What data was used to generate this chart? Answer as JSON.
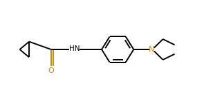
{
  "bg_color": "#ffffff",
  "line_color": "#000000",
  "N_color": "#cc8800",
  "O_color": "#cc8800",
  "NH_color": "#000000",
  "line_width": 1.4,
  "fig_width": 3.21,
  "fig_height": 1.5,
  "dpi": 100,
  "xlim": [
    0,
    10
  ],
  "ylim": [
    0,
    5
  ]
}
